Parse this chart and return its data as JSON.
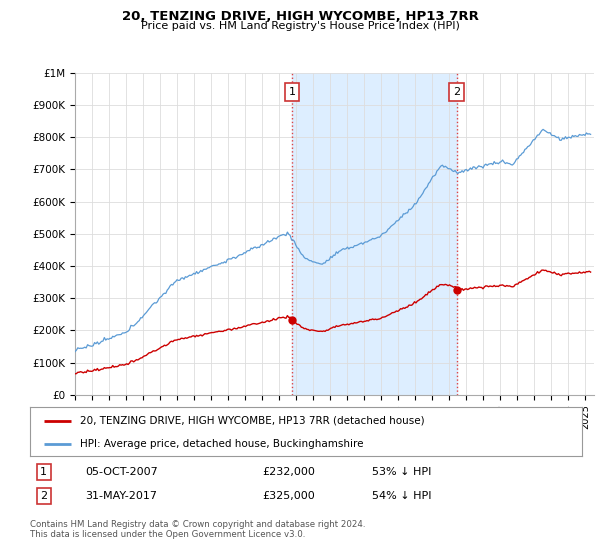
{
  "title": "20, TENZING DRIVE, HIGH WYCOMBE, HP13 7RR",
  "subtitle": "Price paid vs. HM Land Registry's House Price Index (HPI)",
  "ylabel_ticks": [
    "£0",
    "£100K",
    "£200K",
    "£300K",
    "£400K",
    "£500K",
    "£600K",
    "£700K",
    "£800K",
    "£900K",
    "£1M"
  ],
  "ytick_values": [
    0,
    100000,
    200000,
    300000,
    400000,
    500000,
    600000,
    700000,
    800000,
    900000,
    1000000
  ],
  "ylim": [
    0,
    1000000
  ],
  "xlim_start": 1995.0,
  "xlim_end": 2025.5,
  "hpi_color": "#5b9bd5",
  "hpi_fill_color": "#ddeeff",
  "price_color": "#cc0000",
  "marker1_date_x": 2007.75,
  "marker1_price": 232000,
  "marker2_date_x": 2017.42,
  "marker2_price": 325000,
  "vline_color": "#dd4444",
  "legend_label_red": "20, TENZING DRIVE, HIGH WYCOMBE, HP13 7RR (detached house)",
  "legend_label_blue": "HPI: Average price, detached house, Buckinghamshire",
  "table_row1": [
    "1",
    "05-OCT-2007",
    "£232,000",
    "53% ↓ HPI"
  ],
  "table_row2": [
    "2",
    "31-MAY-2017",
    "£325,000",
    "54% ↓ HPI"
  ],
  "footer": "Contains HM Land Registry data © Crown copyright and database right 2024.\nThis data is licensed under the Open Government Licence v3.0.",
  "bg_color": "#ffffff",
  "grid_color": "#dddddd"
}
